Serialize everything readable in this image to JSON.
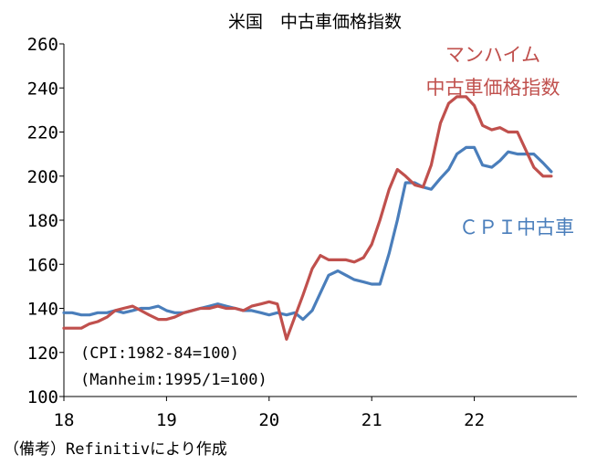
{
  "chart_data": {
    "type": "line",
    "title": "米国　中古車価格指数",
    "ylim": [
      100,
      260
    ],
    "yticks": [
      "100",
      "120",
      "140",
      "160",
      "180",
      "200",
      "220",
      "240",
      "260"
    ],
    "xlim": [
      18.0,
      23.0
    ],
    "xticks": [
      {
        "value": 18,
        "label": "18"
      },
      {
        "value": 19,
        "label": "19"
      },
      {
        "value": 20,
        "label": "20"
      },
      {
        "value": 21,
        "label": "21"
      },
      {
        "value": 22,
        "label": "22"
      }
    ],
    "grid": false,
    "notes": [
      "(CPI:1982-84=100)",
      "(Manheim:1995/1=100)"
    ],
    "source": "（備考）Refinitivにより作成",
    "series": [
      {
        "name": "マンハイム中古車価格指数",
        "label_lines": [
          "マンハイム",
          "中古車価格指数"
        ],
        "color": "#c0504d",
        "x": [
          18.0,
          18.08,
          18.17,
          18.25,
          18.33,
          18.42,
          18.5,
          18.58,
          18.67,
          18.75,
          18.83,
          18.92,
          19.0,
          19.08,
          19.17,
          19.25,
          19.33,
          19.42,
          19.5,
          19.58,
          19.67,
          19.75,
          19.83,
          19.92,
          20.0,
          20.08,
          20.17,
          20.25,
          20.33,
          20.42,
          20.5,
          20.58,
          20.67,
          20.75,
          20.83,
          20.92,
          21.0,
          21.08,
          21.17,
          21.25,
          21.33,
          21.42,
          21.5,
          21.58,
          21.67,
          21.75,
          21.83,
          21.92,
          22.0,
          22.08,
          22.17,
          22.25,
          22.33,
          22.42,
          22.5,
          22.58,
          22.67,
          22.75
        ],
        "values": [
          131,
          131,
          131,
          133,
          134,
          136,
          139,
          140,
          141,
          139,
          137,
          135,
          135,
          136,
          138,
          139,
          140,
          140,
          141,
          140,
          140,
          139,
          141,
          142,
          143,
          142,
          126,
          136,
          146,
          158,
          164,
          162,
          162,
          162,
          161,
          163,
          169,
          180,
          194,
          203,
          200,
          196,
          195,
          205,
          224,
          233,
          236,
          236,
          232,
          223,
          221,
          222,
          220,
          220,
          212,
          204,
          200,
          200
        ]
      },
      {
        "name": "ＣＰＩ中古車",
        "label_lines": [
          "ＣＰＩ中古車"
        ],
        "color": "#4a7ebb",
        "x": [
          18.0,
          18.08,
          18.17,
          18.25,
          18.33,
          18.42,
          18.5,
          18.58,
          18.67,
          18.75,
          18.83,
          18.92,
          19.0,
          19.08,
          19.17,
          19.25,
          19.33,
          19.42,
          19.5,
          19.58,
          19.67,
          19.75,
          19.83,
          19.92,
          20.0,
          20.08,
          20.17,
          20.25,
          20.33,
          20.42,
          20.5,
          20.58,
          20.67,
          20.75,
          20.83,
          20.92,
          21.0,
          21.08,
          21.17,
          21.25,
          21.33,
          21.42,
          21.5,
          21.58,
          21.67,
          21.75,
          21.83,
          21.92,
          22.0,
          22.08,
          22.17,
          22.25,
          22.33,
          22.42,
          22.5,
          22.58,
          22.67,
          22.75
        ],
        "values": [
          138,
          138,
          137,
          137,
          138,
          138,
          139,
          138,
          139,
          140,
          140,
          141,
          139,
          138,
          138,
          139,
          140,
          141,
          142,
          141,
          140,
          139,
          139,
          138,
          137,
          138,
          137,
          138,
          135,
          139,
          147,
          155,
          157,
          155,
          153,
          152,
          151,
          151,
          165,
          180,
          197,
          197,
          195,
          194,
          199,
          203,
          210,
          213,
          213,
          205,
          204,
          207,
          211,
          210,
          210,
          210,
          206,
          202
        ]
      }
    ]
  }
}
